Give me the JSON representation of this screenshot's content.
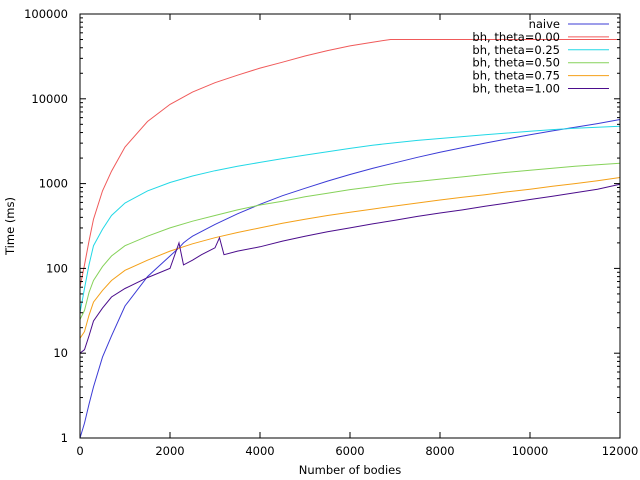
{
  "chart_data": {
    "type": "line",
    "title": "",
    "xlabel": "Number of bodies",
    "ylabel": "Time (ms)",
    "xlim": [
      0,
      12000
    ],
    "ylim": [
      1,
      100000
    ],
    "yscale": "log",
    "grid": false,
    "legend_position": "top-right",
    "x_ticks": [
      "0",
      "2000",
      "4000",
      "6000",
      "8000",
      "10000",
      "12000"
    ],
    "y_ticks": [
      "1",
      "10",
      "100",
      "1000",
      "10000",
      "100000"
    ],
    "series": [
      {
        "name": "naive",
        "color": "#3b3bd6",
        "points": [
          [
            0,
            1
          ],
          [
            100,
            1.5
          ],
          [
            200,
            2.5
          ],
          [
            300,
            4
          ],
          [
            500,
            9
          ],
          [
            700,
            16
          ],
          [
            1000,
            36
          ],
          [
            1500,
            80
          ],
          [
            2000,
            140
          ],
          [
            2200,
            175
          ],
          [
            2300,
            200
          ],
          [
            2400,
            220
          ],
          [
            2500,
            240
          ],
          [
            3000,
            330
          ],
          [
            3500,
            440
          ],
          [
            4000,
            570
          ],
          [
            4500,
            720
          ],
          [
            5000,
            880
          ],
          [
            5500,
            1070
          ],
          [
            6000,
            1280
          ],
          [
            6500,
            1510
          ],
          [
            7000,
            1760
          ],
          [
            7500,
            2040
          ],
          [
            8000,
            2340
          ],
          [
            8500,
            2660
          ],
          [
            9000,
            3000
          ],
          [
            9500,
            3370
          ],
          [
            10000,
            3760
          ],
          [
            10500,
            4180
          ],
          [
            11000,
            4620
          ],
          [
            11500,
            5100
          ],
          [
            12000,
            5700
          ]
        ]
      },
      {
        "name": "bh, theta=0.00",
        "color": "#f05a5a",
        "points": [
          [
            0,
            60
          ],
          [
            100,
            110
          ],
          [
            200,
            210
          ],
          [
            300,
            380
          ],
          [
            500,
            820
          ],
          [
            700,
            1400
          ],
          [
            1000,
            2700
          ],
          [
            1500,
            5400
          ],
          [
            2000,
            8600
          ],
          [
            2500,
            12000
          ],
          [
            3000,
            15500
          ],
          [
            3500,
            19000
          ],
          [
            4000,
            23000
          ],
          [
            4500,
            27000
          ],
          [
            5000,
            32000
          ],
          [
            5500,
            37000
          ],
          [
            6000,
            42000
          ],
          [
            6500,
            46500
          ],
          [
            6900,
            50000
          ],
          [
            7000,
            50000
          ],
          [
            8000,
            50000
          ],
          [
            9000,
            50000
          ],
          [
            10000,
            50000
          ],
          [
            11000,
            50000
          ],
          [
            12000,
            50000
          ]
        ]
      },
      {
        "name": "bh, theta=0.25",
        "color": "#22d8e6",
        "points": [
          [
            0,
            30
          ],
          [
            100,
            58
          ],
          [
            200,
            110
          ],
          [
            300,
            185
          ],
          [
            500,
            290
          ],
          [
            700,
            420
          ],
          [
            1000,
            590
          ],
          [
            1500,
            820
          ],
          [
            2000,
            1030
          ],
          [
            2500,
            1230
          ],
          [
            3000,
            1420
          ],
          [
            3500,
            1600
          ],
          [
            4000,
            1780
          ],
          [
            4500,
            1970
          ],
          [
            5000,
            2170
          ],
          [
            5500,
            2380
          ],
          [
            6000,
            2600
          ],
          [
            6500,
            2840
          ],
          [
            7000,
            3030
          ],
          [
            7500,
            3230
          ],
          [
            8000,
            3400
          ],
          [
            8500,
            3580
          ],
          [
            9000,
            3760
          ],
          [
            9500,
            3950
          ],
          [
            10000,
            4150
          ],
          [
            10500,
            4330
          ],
          [
            11000,
            4500
          ],
          [
            11500,
            4630
          ],
          [
            12000,
            4750
          ]
        ]
      },
      {
        "name": "bh, theta=0.50",
        "color": "#86d25a",
        "points": [
          [
            0,
            25
          ],
          [
            100,
            32
          ],
          [
            200,
            52
          ],
          [
            300,
            72
          ],
          [
            500,
            105
          ],
          [
            700,
            140
          ],
          [
            1000,
            185
          ],
          [
            1500,
            240
          ],
          [
            2000,
            300
          ],
          [
            2500,
            360
          ],
          [
            3000,
            420
          ],
          [
            3500,
            490
          ],
          [
            4000,
            560
          ],
          [
            4500,
            620
          ],
          [
            5000,
            700
          ],
          [
            5500,
            770
          ],
          [
            6000,
            850
          ],
          [
            6500,
            920
          ],
          [
            7000,
            1000
          ],
          [
            7500,
            1060
          ],
          [
            8000,
            1130
          ],
          [
            8500,
            1200
          ],
          [
            9000,
            1280
          ],
          [
            9500,
            1360
          ],
          [
            10000,
            1440
          ],
          [
            10500,
            1520
          ],
          [
            11000,
            1600
          ],
          [
            11500,
            1670
          ],
          [
            12000,
            1740
          ]
        ]
      },
      {
        "name": "bh, theta=0.75",
        "color": "#f4a018",
        "points": [
          [
            0,
            15
          ],
          [
            100,
            18
          ],
          [
            200,
            28
          ],
          [
            300,
            40
          ],
          [
            500,
            55
          ],
          [
            700,
            72
          ],
          [
            1000,
            95
          ],
          [
            1500,
            125
          ],
          [
            2000,
            160
          ],
          [
            2500,
            195
          ],
          [
            3000,
            230
          ],
          [
            3500,
            265
          ],
          [
            4000,
            300
          ],
          [
            4500,
            340
          ],
          [
            5000,
            380
          ],
          [
            5500,
            420
          ],
          [
            6000,
            460
          ],
          [
            6500,
            500
          ],
          [
            7000,
            545
          ],
          [
            7500,
            590
          ],
          [
            8000,
            640
          ],
          [
            8500,
            690
          ],
          [
            9000,
            740
          ],
          [
            9500,
            800
          ],
          [
            10000,
            860
          ],
          [
            10500,
            930
          ],
          [
            11000,
            1000
          ],
          [
            11500,
            1080
          ],
          [
            12000,
            1180
          ]
        ]
      },
      {
        "name": "bh, theta=1.00",
        "color": "#4b0d8c",
        "points": [
          [
            0,
            10
          ],
          [
            100,
            11
          ],
          [
            200,
            16
          ],
          [
            300,
            24
          ],
          [
            500,
            34
          ],
          [
            700,
            46
          ],
          [
            1000,
            58
          ],
          [
            1500,
            78
          ],
          [
            2000,
            100
          ],
          [
            2200,
            200
          ],
          [
            2300,
            110
          ],
          [
            2500,
            125
          ],
          [
            2700,
            145
          ],
          [
            3000,
            175
          ],
          [
            3100,
            230
          ],
          [
            3200,
            145
          ],
          [
            3500,
            160
          ],
          [
            4000,
            180
          ],
          [
            4500,
            210
          ],
          [
            5000,
            240
          ],
          [
            5500,
            270
          ],
          [
            6000,
            300
          ],
          [
            6500,
            335
          ],
          [
            7000,
            370
          ],
          [
            7500,
            410
          ],
          [
            8000,
            450
          ],
          [
            8500,
            490
          ],
          [
            9000,
            540
          ],
          [
            9500,
            590
          ],
          [
            10000,
            650
          ],
          [
            10500,
            710
          ],
          [
            11000,
            780
          ],
          [
            11500,
            860
          ],
          [
            12000,
            980
          ]
        ]
      }
    ]
  }
}
